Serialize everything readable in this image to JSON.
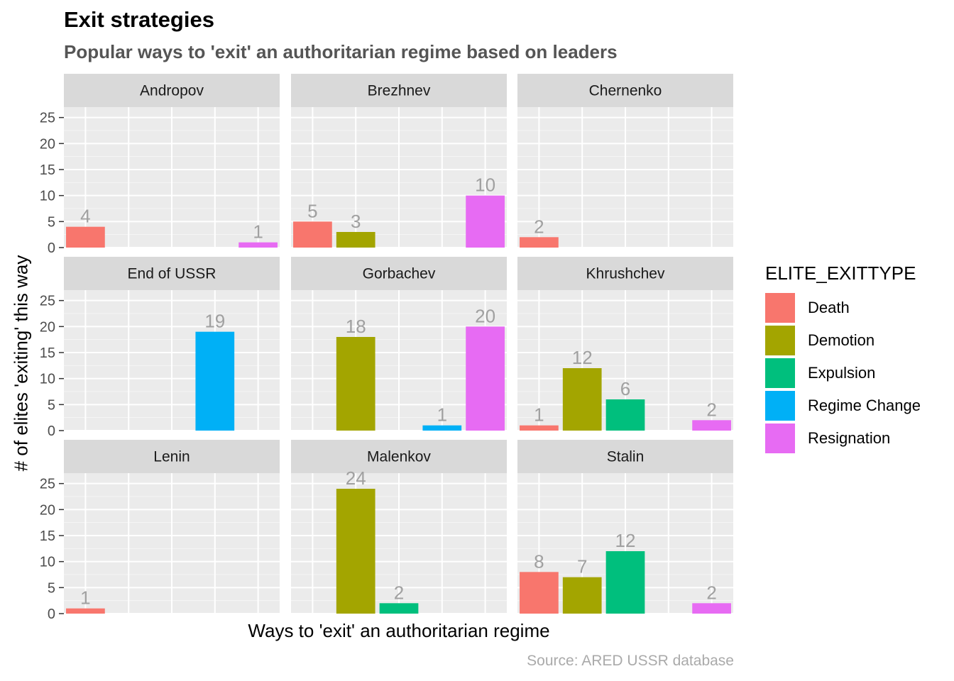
{
  "chart_data": {
    "type": "bar",
    "title": "Exit strategies",
    "subtitle": "Popular ways to 'exit' an authoritarian regime based on leaders",
    "xlabel": "Ways to 'exit' an authoritarian regime",
    "ylabel": "# of elites 'exiting' this way",
    "caption": "Source: ARED USSR database",
    "legend_title": "ELITE_EXITTYPE",
    "legend_position": "right",
    "grid": true,
    "ylim": [
      0,
      27
    ],
    "yticks": [
      0,
      5,
      10,
      15,
      20,
      25
    ],
    "categories": [
      "Death",
      "Demotion",
      "Expulsion",
      "Regime Change",
      "Resignation"
    ],
    "colors": {
      "Death": "#F8766D",
      "Demotion": "#A3A500",
      "Expulsion": "#00BF7D",
      "Regime Change": "#00B0F6",
      "Resignation": "#E76BF3"
    },
    "panels": [
      {
        "name": "Andropov",
        "values": [
          4,
          0,
          0,
          0,
          1
        ]
      },
      {
        "name": "Brezhnev",
        "values": [
          5,
          3,
          0,
          0,
          10
        ]
      },
      {
        "name": "Chernenko",
        "values": [
          2,
          0,
          0,
          0,
          0
        ]
      },
      {
        "name": "End of USSR",
        "values": [
          0,
          0,
          0,
          19,
          0
        ]
      },
      {
        "name": "Gorbachev",
        "values": [
          0,
          18,
          0,
          1,
          20
        ]
      },
      {
        "name": "Khrushchev",
        "values": [
          1,
          12,
          6,
          0,
          2
        ]
      },
      {
        "name": "Lenin",
        "values": [
          1,
          0,
          0,
          0,
          0
        ]
      },
      {
        "name": "Malenkov",
        "values": [
          0,
          24,
          2,
          0,
          0
        ]
      },
      {
        "name": "Stalin",
        "values": [
          8,
          7,
          12,
          0,
          2
        ]
      }
    ]
  }
}
